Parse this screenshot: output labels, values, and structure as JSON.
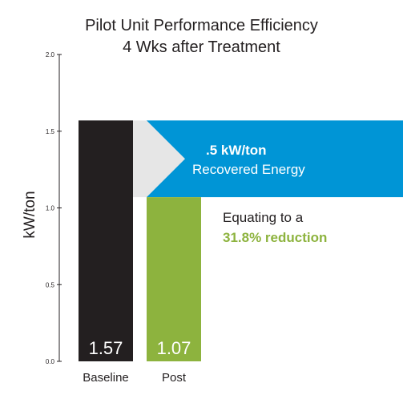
{
  "chart_data": {
    "type": "bar",
    "title": "Pilot Unit Performance Efficiency",
    "subtitle": "4 Wks after Treatment",
    "ylabel": "kW/ton",
    "xlabel": "",
    "ylim": [
      0,
      2.0
    ],
    "yticks": [
      0.0,
      0.5,
      1.0,
      1.5,
      2.0
    ],
    "ytick_labels": [
      "0.0",
      "0.5",
      "1.0",
      "1.5",
      "2.0"
    ],
    "categories": [
      "Baseline",
      "Post"
    ],
    "values": [
      1.57,
      1.07
    ],
    "value_labels": [
      "1.57",
      "1.07"
    ],
    "bar_colors": [
      "#231f20",
      "#8db33e"
    ],
    "annotations": {
      "recovered_value": ".5 kW/ton",
      "recovered_label": "Recovered Energy",
      "recovered_color": "#0095d6",
      "arrow_color": "#e6e6e6",
      "equating_line1": "Equating to a",
      "equating_line2": "31.8% reduction",
      "equating_highlight_color": "#8db33e"
    },
    "grid": false,
    "legend": "none"
  }
}
